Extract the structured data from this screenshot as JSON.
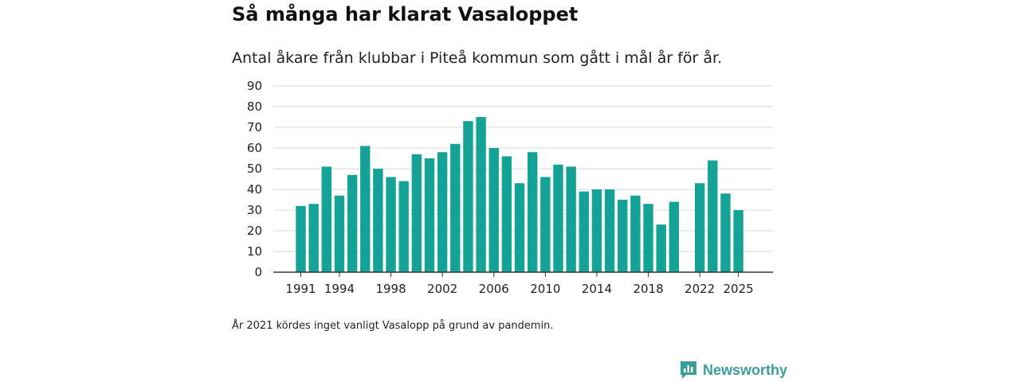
{
  "title": "Så många har klarat Vasaloppet",
  "subtitle": "Antal åkare från klubbar i Piteå kommun som gått i mål år för år.",
  "note": "År 2021 kördes inget vanligt Vasalopp på grund av pandemin.",
  "brand": {
    "name": "Newsworthy",
    "icon": "newsworthy-logo-icon"
  },
  "colors": {
    "bar": "#14a396",
    "grid": "#d9d9d9",
    "axis": "#333333",
    "brand": "#3a9e9a"
  },
  "chart_data": {
    "type": "bar",
    "title": "Så många har klarat Vasaloppet",
    "subtitle": "Antal åkare från klubbar i Piteå kommun som gått i mål år för år.",
    "xlabel": "",
    "ylabel": "",
    "ylim": [
      0,
      90
    ],
    "yticks": [
      0,
      10,
      20,
      30,
      40,
      50,
      60,
      70,
      80,
      90
    ],
    "xticks": [
      "1991",
      "1994",
      "1998",
      "2002",
      "2006",
      "2010",
      "2014",
      "2018",
      "2022",
      "2025"
    ],
    "grid": true,
    "categories": [
      "1991",
      "1992",
      "1993",
      "1994",
      "1995",
      "1996",
      "1997",
      "1998",
      "1999",
      "2000",
      "2001",
      "2002",
      "2003",
      "2004",
      "2005",
      "2006",
      "2007",
      "2008",
      "2009",
      "2010",
      "2011",
      "2012",
      "2013",
      "2014",
      "2015",
      "2016",
      "2017",
      "2018",
      "2019",
      "2020",
      "2021",
      "2022",
      "2023",
      "2024",
      "2025"
    ],
    "values": [
      32,
      33,
      51,
      37,
      47,
      61,
      50,
      46,
      44,
      57,
      55,
      58,
      62,
      73,
      75,
      60,
      56,
      43,
      58,
      46,
      52,
      51,
      39,
      40,
      40,
      35,
      37,
      33,
      23,
      34,
      null,
      43,
      54,
      38,
      30
    ]
  }
}
